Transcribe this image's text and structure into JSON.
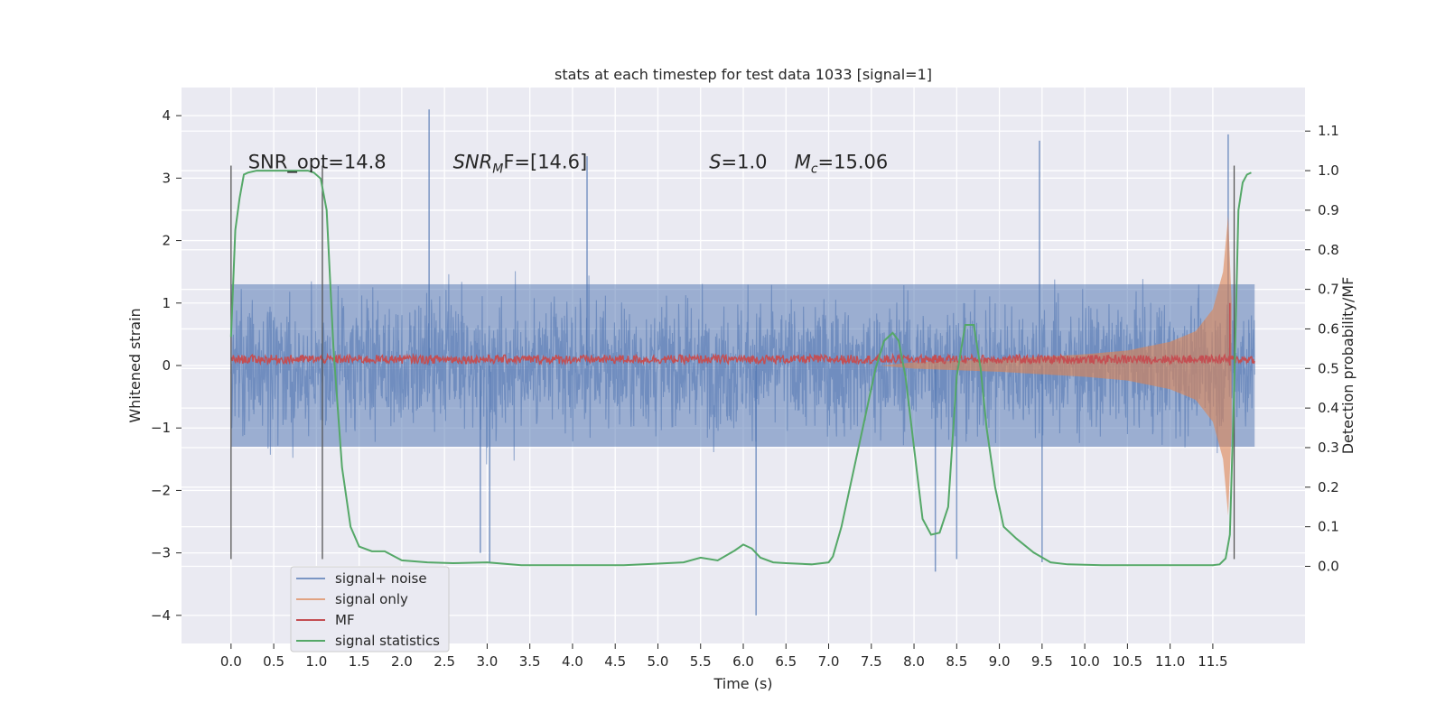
{
  "chart_data": {
    "type": "line",
    "title": "stats at each timestep for test data 1033 [signal=1]",
    "xlabel": "Time (s)",
    "ylabel_left": "Whitened strain",
    "ylabel_right": "Detection probability/MF",
    "xlim": [
      -0.58,
      12.58
    ],
    "ylim_left": [
      -4.45,
      4.45
    ],
    "ylim_right": [
      -0.195,
      1.21
    ],
    "xticks": [
      0.0,
      0.5,
      1.0,
      1.5,
      2.0,
      2.5,
      3.0,
      3.5,
      4.0,
      4.5,
      5.0,
      5.5,
      6.0,
      6.5,
      7.0,
      7.5,
      8.0,
      8.5,
      9.0,
      9.5,
      10.0,
      10.5,
      11.0,
      11.5
    ],
    "xtick_labels": [
      "0.0",
      "0.5",
      "1.0",
      "1.5",
      "2.0",
      "2.5",
      "3.0",
      "3.5",
      "4.0",
      "4.5",
      "5.0",
      "5.5",
      "6.0",
      "6.5",
      "7.0",
      "7.5",
      "8.0",
      "8.5",
      "9.0",
      "9.5",
      "10.0",
      "10.5",
      "11.0",
      "11.5"
    ],
    "yticks_left": [
      -4,
      -3,
      -2,
      -1,
      0,
      1,
      2,
      3,
      4
    ],
    "ytick_labels_left": [
      "−4",
      "−3",
      "−2",
      "−1",
      "0",
      "1",
      "2",
      "3",
      "4"
    ],
    "yticks_right": [
      0.0,
      0.1,
      0.2,
      0.3,
      0.4,
      0.5,
      0.6,
      0.7,
      0.8,
      0.9,
      1.0,
      1.1
    ],
    "ytick_labels_right": [
      "0.0",
      "0.1",
      "0.2",
      "0.3",
      "0.4",
      "0.5",
      "0.6",
      "0.7",
      "0.8",
      "0.9",
      "1.0",
      "1.1"
    ],
    "grid": true,
    "legend_placement": "lower-left",
    "background_color": "#EAEAF2",
    "annotations": [
      {
        "text": "SNR_opt=14.8",
        "x": 0.2,
        "y": 3.2,
        "math": false
      },
      {
        "text": "SNR",
        "sub": "M",
        "rest": "F=[14.6]",
        "x": 2.6,
        "y": 3.2,
        "math": true
      },
      {
        "text": "S",
        "rest": "=1.0",
        "x": 5.6,
        "y": 3.2,
        "math": true
      },
      {
        "text": "M",
        "sub": "c",
        "rest": "=15.06",
        "x": 6.6,
        "y": 3.2,
        "math": true
      }
    ],
    "vertical_markers": [
      {
        "x": 0.0,
        "y0": -3.1,
        "y1": 3.2
      },
      {
        "x": 1.07,
        "y0": -3.1,
        "y1": 3.2
      },
      {
        "x": 11.75,
        "y0": -3.1,
        "y1": 3.2
      }
    ],
    "series": [
      {
        "name": "signal+ noise",
        "axis": "left",
        "color": "#4C72B0",
        "opacity": 0.55,
        "x_start": 0.0,
        "x_end": 11.99,
        "typical_amplitude": 1.3,
        "peak_values": [
          {
            "x": 2.32,
            "y": 4.1
          },
          {
            "x": 4.17,
            "y": 3.35
          },
          {
            "x": 9.47,
            "y": 3.6
          },
          {
            "x": 11.68,
            "y": 3.7
          },
          {
            "x": 2.92,
            "y": -3.0
          },
          {
            "x": 3.03,
            "y": -3.15
          },
          {
            "x": 6.15,
            "y": -4.0
          },
          {
            "x": 8.25,
            "y": -3.3
          },
          {
            "x": 8.5,
            "y": -3.1
          },
          {
            "x": 9.5,
            "y": -3.15
          }
        ]
      },
      {
        "name": "signal only",
        "axis": "left",
        "color": "#DD8452",
        "opacity": 0.6,
        "envelope": [
          {
            "x": 8.0,
            "amp": 0.05
          },
          {
            "x": 9.0,
            "amp": 0.1
          },
          {
            "x": 10.0,
            "amp": 0.18
          },
          {
            "x": 10.5,
            "amp": 0.24
          },
          {
            "x": 11.0,
            "amp": 0.38
          },
          {
            "x": 11.3,
            "amp": 0.55
          },
          {
            "x": 11.5,
            "amp": 0.9
          },
          {
            "x": 11.62,
            "amp": 1.5
          },
          {
            "x": 11.68,
            "amp": 2.4
          },
          {
            "x": 11.72,
            "amp": 1.0
          }
        ]
      },
      {
        "name": "MF",
        "axis": "left",
        "color": "#C44E52",
        "x_start": 0.0,
        "x_end": 11.99,
        "baseline": 0.1,
        "spike": {
          "x": 11.7,
          "y": 1.0
        }
      },
      {
        "name": "signal statistics",
        "axis": "right",
        "color": "#55A868",
        "x": [
          0.0,
          0.05,
          0.1,
          0.15,
          0.2,
          0.3,
          0.5,
          0.7,
          0.9,
          0.97,
          1.05,
          1.12,
          1.2,
          1.3,
          1.4,
          1.5,
          1.65,
          1.8,
          2.0,
          2.3,
          2.6,
          3.0,
          3.4,
          3.8,
          4.2,
          4.6,
          5.0,
          5.3,
          5.5,
          5.7,
          5.9,
          6.0,
          6.1,
          6.2,
          6.35,
          6.5,
          6.8,
          7.0,
          7.05,
          7.15,
          7.25,
          7.35,
          7.45,
          7.55,
          7.65,
          7.75,
          7.82,
          7.9,
          8.0,
          8.1,
          8.2,
          8.3,
          8.4,
          8.5,
          8.6,
          8.7,
          8.78,
          8.85,
          8.95,
          9.05,
          9.2,
          9.4,
          9.6,
          9.8,
          10.2,
          10.6,
          11.0,
          11.3,
          11.5,
          11.58,
          11.65,
          11.7,
          11.75,
          11.8,
          11.85,
          11.9,
          11.95
        ],
        "y": [
          0.58,
          0.85,
          0.93,
          0.99,
          0.995,
          1.0,
          1.0,
          1.0,
          1.0,
          0.995,
          0.98,
          0.9,
          0.55,
          0.25,
          0.1,
          0.05,
          0.038,
          0.038,
          0.015,
          0.01,
          0.008,
          0.01,
          0.003,
          0.003,
          0.003,
          0.003,
          0.007,
          0.01,
          0.022,
          0.015,
          0.04,
          0.055,
          0.045,
          0.022,
          0.01,
          0.008,
          0.005,
          0.01,
          0.025,
          0.1,
          0.2,
          0.3,
          0.4,
          0.5,
          0.57,
          0.59,
          0.57,
          0.48,
          0.3,
          0.12,
          0.08,
          0.085,
          0.15,
          0.48,
          0.61,
          0.61,
          0.5,
          0.35,
          0.2,
          0.1,
          0.07,
          0.035,
          0.01,
          0.005,
          0.003,
          0.003,
          0.003,
          0.003,
          0.003,
          0.005,
          0.02,
          0.08,
          0.45,
          0.9,
          0.97,
          0.99,
          0.995
        ]
      }
    ]
  }
}
